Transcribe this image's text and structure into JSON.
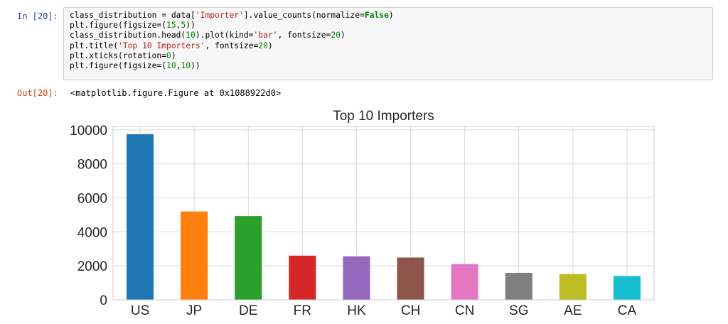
{
  "notebook": {
    "input_prompt": "In [20]:",
    "output_prompt": "Out[20]:",
    "code_lines": [
      [
        {
          "t": "class_distribution = data["
        },
        {
          "t": "'Importer'",
          "c": "str"
        },
        {
          "t": "].value_counts(normalize="
        },
        {
          "t": "False",
          "c": "kw"
        },
        {
          "t": ")"
        }
      ],
      [
        {
          "t": "plt.figure(figsize=("
        },
        {
          "t": "15",
          "c": "num"
        },
        {
          "t": ","
        },
        {
          "t": "5",
          "c": "num"
        },
        {
          "t": "))"
        }
      ],
      [
        {
          "t": "class_distribution.head("
        },
        {
          "t": "10",
          "c": "num"
        },
        {
          "t": ").plot(kind="
        },
        {
          "t": "'bar'",
          "c": "str"
        },
        {
          "t": ", fontsize="
        },
        {
          "t": "20",
          "c": "num"
        },
        {
          "t": ")"
        }
      ],
      [
        {
          "t": "plt.title("
        },
        {
          "t": "'Top 10 Importers'",
          "c": "str"
        },
        {
          "t": ", fontsize="
        },
        {
          "t": "20",
          "c": "num"
        },
        {
          "t": ")"
        }
      ],
      [
        {
          "t": "plt.xticks(rotation="
        },
        {
          "t": "0",
          "c": "num"
        },
        {
          "t": ")"
        }
      ],
      [
        {
          "t": "plt.figure(figsize=("
        },
        {
          "t": "10",
          "c": "num"
        },
        {
          "t": ","
        },
        {
          "t": "10",
          "c": "num"
        },
        {
          "t": "))"
        }
      ]
    ],
    "output_text": "<matplotlib.figure.Figure at 0x1088922d0>"
  },
  "chart_data": {
    "type": "bar",
    "title": "Top 10 Importers",
    "categories": [
      "US",
      "JP",
      "DE",
      "FR",
      "HK",
      "CH",
      "CN",
      "SG",
      "AE",
      "CA"
    ],
    "values": [
      9750,
      5200,
      4930,
      2600,
      2560,
      2490,
      2110,
      1590,
      1520,
      1400
    ],
    "colors": [
      "#1f77b4",
      "#ff7f0e",
      "#2ca02c",
      "#d62728",
      "#9467bd",
      "#8c564b",
      "#e377c2",
      "#7f7f7f",
      "#bcbd22",
      "#17becf"
    ],
    "yticks": [
      0,
      2000,
      4000,
      6000,
      8000,
      10000
    ],
    "ylim": [
      0,
      10200
    ],
    "grid": true,
    "xlabel": "",
    "ylabel": ""
  }
}
